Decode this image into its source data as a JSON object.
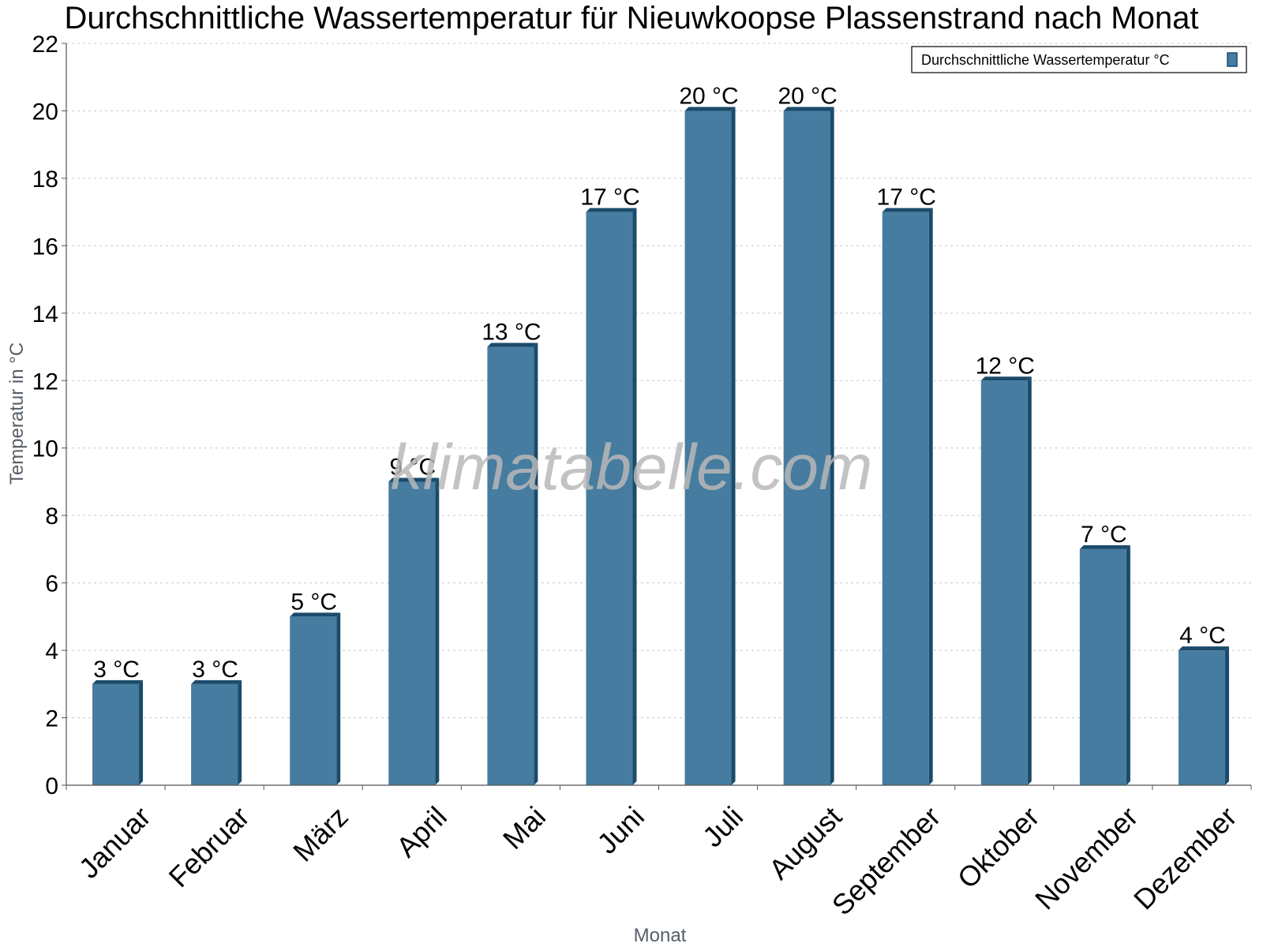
{
  "chart_data": {
    "type": "bar",
    "title": "Durchschnittliche Wassertemperatur für Nieuwkoopse Plassenstrand nach Monat",
    "xlabel": "Monat",
    "ylabel": "Temperatur in °C",
    "categories": [
      "Januar",
      "Februar",
      "März",
      "April",
      "Mai",
      "Juni",
      "Juli",
      "August",
      "September",
      "Oktober",
      "November",
      "Dezember"
    ],
    "series": [
      {
        "name": "Durchschnittliche Wassertemperatur °C",
        "values": [
          3,
          3,
          5,
          9,
          13,
          17,
          20,
          20,
          17,
          12,
          7,
          4
        ],
        "value_labels": [
          "3 °C",
          "3 °C",
          "5 °C",
          "9 °C",
          "13 °C",
          "17 °C",
          "20 °C",
          "20 °C",
          "17 °C",
          "12 °C",
          "7 °C",
          "4 °C"
        ]
      }
    ],
    "ylim": [
      0,
      22
    ],
    "yticks": [
      0,
      2,
      4,
      6,
      8,
      10,
      12,
      14,
      16,
      18,
      20,
      22
    ],
    "grid": true,
    "legend_position": "top-right",
    "watermark": "klimatabelle.com",
    "colors": {
      "bar": "#467c9f",
      "bar_edge": "#1b4b6b",
      "grid": "#c8c8c8",
      "axis": "#555555"
    }
  }
}
